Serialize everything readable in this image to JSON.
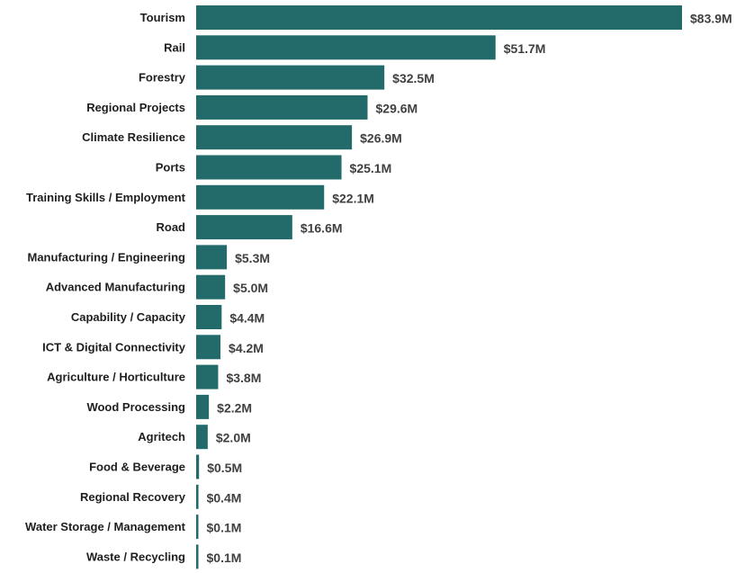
{
  "chart_data": {
    "type": "bar",
    "orientation": "horizontal",
    "title": "",
    "xlabel": "",
    "ylabel": "",
    "xlim": [
      0,
      83.9
    ],
    "grid": false,
    "legend": "none",
    "bar_color": "#236b6b",
    "categories": [
      "Tourism",
      "Rail",
      "Forestry",
      "Regional Projects",
      "Climate Resilience",
      "Ports",
      "Training Skills / Employment",
      "Road",
      "Manufacturing / Engineering",
      "Advanced Manufacturing",
      "Capability / Capacity",
      "ICT & Digital Connectivity",
      "Agriculture / Horticulture",
      "Wood Processing",
      "Agritech",
      "Food & Beverage",
      "Regional Recovery",
      "Water Storage / Management",
      "Waste / Recycling"
    ],
    "values": [
      83.9,
      51.7,
      32.5,
      29.6,
      26.9,
      25.1,
      22.1,
      16.6,
      5.3,
      5.0,
      4.4,
      4.2,
      3.8,
      2.2,
      2.0,
      0.5,
      0.4,
      0.1,
      0.1
    ],
    "value_labels": [
      "$83.9M",
      "$51.7M",
      "$32.5M",
      "$29.6M",
      "$26.9M",
      "$25.1M",
      "$22.1M",
      "$16.6M",
      "$5.3M",
      "$5.0M",
      "$4.4M",
      "$4.2M",
      "$3.8M",
      "$2.2M",
      "$2.0M",
      "$0.5M",
      "$0.4M",
      "$0.1M",
      "$0.1M"
    ]
  }
}
